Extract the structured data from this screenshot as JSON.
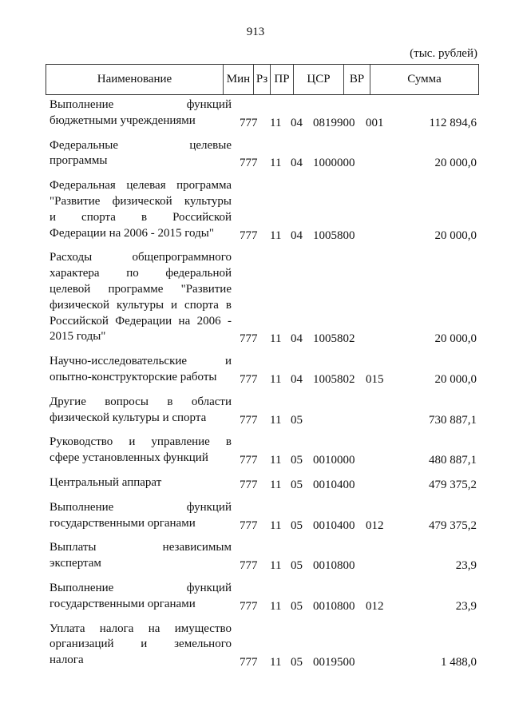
{
  "page_number": "913",
  "units": "(тыс. рублей)",
  "headers": {
    "name": "Наименование",
    "min": "Мин",
    "rz": "Рз",
    "pr": "ПР",
    "csr": "ЦСР",
    "vr": "ВР",
    "sum": "Сумма"
  },
  "rows": [
    {
      "lines": [
        "Выполнение функций",
        "бюджетными учреждениями"
      ],
      "min": "777",
      "rz": "11",
      "pr": "04",
      "csr": "0819900",
      "vr": "001",
      "sum": "112 894,6"
    },
    {
      "lines": [
        "Федеральные целевые",
        "программы"
      ],
      "min": "777",
      "rz": "11",
      "pr": "04",
      "csr": "1000000",
      "vr": "",
      "sum": "20 000,0"
    },
    {
      "lines": [
        "Федеральная целевая программа",
        "\"Развитие физической культуры",
        "и спорта в Российской",
        "Федерации на 2006 - 2015 годы\""
      ],
      "min": "777",
      "rz": "11",
      "pr": "04",
      "csr": "1005800",
      "vr": "",
      "sum": "20 000,0"
    },
    {
      "lines": [
        "Расходы общепрограммного",
        "характера по федеральной",
        "целевой программе \"Развитие",
        "физической культуры и спорта в",
        "Российской Федерации на 2006 -",
        "2015 годы\""
      ],
      "min": "777",
      "rz": "11",
      "pr": "04",
      "csr": "1005802",
      "vr": "",
      "sum": "20 000,0"
    },
    {
      "lines": [
        "Научно-исследовательские и",
        "опытно-конструкторские работы"
      ],
      "min": "777",
      "rz": "11",
      "pr": "04",
      "csr": "1005802",
      "vr": "015",
      "sum": "20 000,0"
    },
    {
      "lines": [
        "Другие вопросы в области",
        "физической культуры и спорта"
      ],
      "min": "777",
      "rz": "11",
      "pr": "05",
      "csr": "",
      "vr": "",
      "sum": "730 887,1"
    },
    {
      "lines": [
        "Руководство и управление в",
        "сфере установленных функций"
      ],
      "min": "777",
      "rz": "11",
      "pr": "05",
      "csr": "0010000",
      "vr": "",
      "sum": "480 887,1"
    },
    {
      "lines": [
        "Центральный аппарат"
      ],
      "min": "777",
      "rz": "11",
      "pr": "05",
      "csr": "0010400",
      "vr": "",
      "sum": "479 375,2"
    },
    {
      "lines": [
        "Выполнение функций",
        "государственными органами"
      ],
      "min": "777",
      "rz": "11",
      "pr": "05",
      "csr": "0010400",
      "vr": "012",
      "sum": "479 375,2"
    },
    {
      "lines": [
        "Выплаты независимым",
        "экспертам"
      ],
      "min": "777",
      "rz": "11",
      "pr": "05",
      "csr": "0010800",
      "vr": "",
      "sum": "23,9"
    },
    {
      "lines": [
        "Выполнение функций",
        "государственными органами"
      ],
      "min": "777",
      "rz": "11",
      "pr": "05",
      "csr": "0010800",
      "vr": "012",
      "sum": "23,9"
    },
    {
      "lines": [
        "Уплата налога на имущество",
        "организаций и земельного",
        "налога"
      ],
      "min": "777",
      "rz": "11",
      "pr": "05",
      "csr": "0019500",
      "vr": "",
      "sum": "1 488,0"
    }
  ]
}
